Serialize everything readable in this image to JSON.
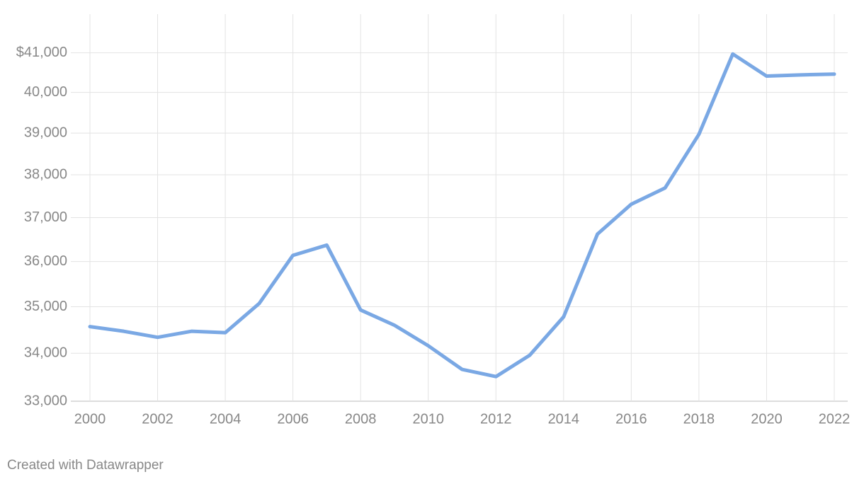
{
  "chart_data": {
    "type": "line",
    "x": [
      2000,
      2001,
      2002,
      2003,
      2004,
      2005,
      2006,
      2007,
      2008,
      2009,
      2010,
      2011,
      2012,
      2013,
      2014,
      2015,
      2016,
      2017,
      2018,
      2019,
      2020,
      2021,
      2022
    ],
    "series": [
      {
        "color": "#7aa8e4",
        "values": [
          34570,
          34470,
          34340,
          34470,
          34440,
          35070,
          36140,
          36370,
          34930,
          34600,
          34160,
          33660,
          33510,
          33960,
          34780,
          36620,
          37310,
          37690,
          38970,
          40970,
          40410,
          40440,
          40460
        ]
      }
    ],
    "xlim": [
      2000,
      2022
    ],
    "xticks": [
      2000,
      2002,
      2004,
      2006,
      2008,
      2010,
      2012,
      2014,
      2016,
      2018,
      2020,
      2022
    ],
    "ylim": [
      33000,
      42000
    ],
    "log": true,
    "yticks": [
      {
        "value": 33000,
        "label": "33,000"
      },
      {
        "value": 34000,
        "label": "34,000"
      },
      {
        "value": 35000,
        "label": "35,000"
      },
      {
        "value": 36000,
        "label": "36,000"
      },
      {
        "value": 37000,
        "label": "37,000"
      },
      {
        "value": 38000,
        "label": "38,000"
      },
      {
        "value": 39000,
        "label": "39,000"
      },
      {
        "value": 40000,
        "label": "40,000"
      },
      {
        "value": 41000,
        "label": "$41,000"
      }
    ],
    "grid": true,
    "footer": "Created with Datawrapper"
  }
}
